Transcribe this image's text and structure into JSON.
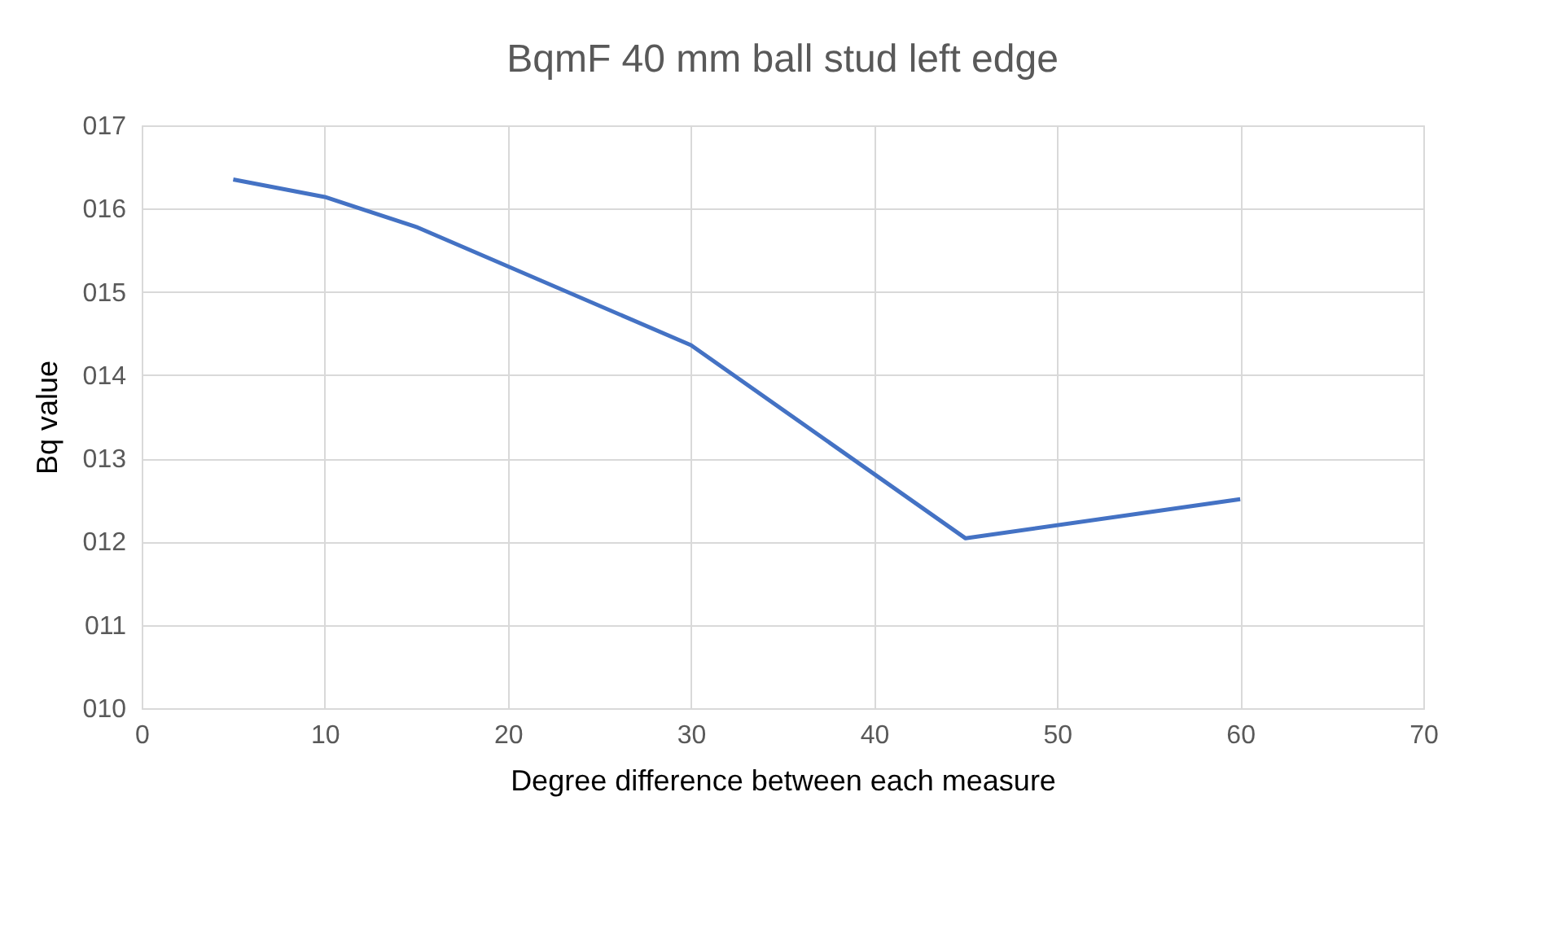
{
  "chart_data": {
    "type": "line",
    "title": "BqmF 40 mm ball stud left edge",
    "xlabel": "Degree difference between each measure",
    "ylabel": "Bq value",
    "x": [
      5,
      10,
      15,
      30,
      45,
      60
    ],
    "series": [
      {
        "color": "#4472c4",
        "values": [
          16.35,
          16.14,
          15.78,
          14.36,
          12.04,
          12.51
        ]
      }
    ],
    "xlim": [
      0,
      70
    ],
    "xticks": [
      0,
      10,
      20,
      30,
      40,
      50,
      60,
      70
    ],
    "ylim": [
      10,
      17
    ],
    "yticks": [
      {
        "value": 10,
        "label": "010"
      },
      {
        "value": 11,
        "label": "011"
      },
      {
        "value": 12,
        "label": "012"
      },
      {
        "value": 13,
        "label": "013"
      },
      {
        "value": 14,
        "label": "014"
      },
      {
        "value": 15,
        "label": "015"
      },
      {
        "value": 16,
        "label": "016"
      },
      {
        "value": 17,
        "label": "017"
      }
    ],
    "grid": true,
    "marker": "none",
    "line_style": "solid"
  }
}
